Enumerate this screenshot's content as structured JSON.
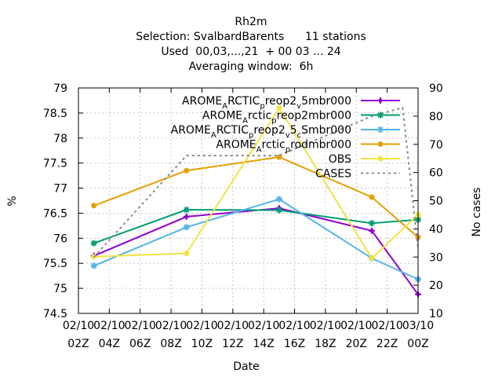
{
  "title_lines": [
    "Rh2m",
    "Selection: SvalbardBarents      11 stations",
    "Used  00,03,...,21  + 00 03 ... 24",
    "Averaging window:  6h"
  ],
  "chart_data": {
    "type": "line",
    "xlabel": "Date",
    "ylabel": "%",
    "y2label": "No cases",
    "x_ticks": [
      [
        "02/10",
        "02Z"
      ],
      [
        "02/10",
        "04Z"
      ],
      [
        "02/10",
        "06Z"
      ],
      [
        "02/10",
        "08Z"
      ],
      [
        "02/10",
        "10Z"
      ],
      [
        "02/10",
        "12Z"
      ],
      [
        "02/10",
        "14Z"
      ],
      [
        "02/10",
        "16Z"
      ],
      [
        "02/10",
        "18Z"
      ],
      [
        "02/10",
        "20Z"
      ],
      [
        "02/10",
        "22Z"
      ],
      [
        "03/10",
        "00Z"
      ]
    ],
    "xlim_hours": [
      2,
      24
    ],
    "ylim": [
      74.5,
      79
    ],
    "y_ticks": [
      "74.5",
      "75",
      "75.5",
      "76",
      "76.5",
      "77",
      "77.5",
      "78",
      "78.5",
      "79"
    ],
    "y2lim": [
      10,
      90
    ],
    "y2_ticks": [
      "10",
      "20",
      "30",
      "40",
      "50",
      "60",
      "70",
      "80",
      "90"
    ],
    "grid": true,
    "legend_position": "top-right",
    "series": [
      {
        "name": "AROME_ARCTIC_preop2_v_5mbr000",
        "legend": [
          "AROME",
          "A",
          "RCTIC",
          "p",
          "reop2",
          "v",
          "5mbr000"
        ],
        "color": "#9400d3",
        "marker": "plus",
        "dash": false,
        "axis": "y",
        "x": [
          3,
          9,
          15,
          21,
          24
        ],
        "y": [
          75.65,
          76.43,
          76.6,
          76.15,
          74.88
        ]
      },
      {
        "name": "AROME_Arctic_preop2mbr000",
        "legend": [
          "AROME",
          "A",
          "rctic",
          "p",
          "reop2mbr000"
        ],
        "color": "#009e73",
        "marker": "star",
        "dash": false,
        "axis": "y",
        "x": [
          3,
          9,
          15,
          21,
          24
        ],
        "y": [
          75.9,
          76.57,
          76.56,
          76.3,
          76.37
        ]
      },
      {
        "name": "AROME_ARCTIC_preop2_v_5_c_Smbr000",
        "legend": [
          "AROME",
          "A",
          "RCTIC",
          "p",
          "reop2",
          "v",
          "5",
          "c",
          "Smbr000"
        ],
        "color": "#56b4e9",
        "marker": "star",
        "dash": false,
        "axis": "y",
        "x": [
          3,
          9,
          15,
          21,
          24
        ],
        "y": [
          75.45,
          76.22,
          76.78,
          75.6,
          75.18
        ]
      },
      {
        "name": "AROME_Arctic_prodmbr000",
        "legend": [
          "AROME",
          "A",
          "rctic",
          "p",
          "rodmbr000"
        ],
        "color": "#e69f00",
        "marker": "dot",
        "dash": false,
        "axis": "y",
        "x": [
          3,
          9,
          15,
          21,
          24
        ],
        "y": [
          76.65,
          77.35,
          77.62,
          76.82,
          76.02
        ]
      },
      {
        "name": "OBS",
        "legend": [
          "OBS"
        ],
        "color": "#f0e442",
        "marker": "dot",
        "dash": false,
        "axis": "y",
        "x": [
          3,
          9,
          15,
          21,
          24
        ],
        "y": [
          75.63,
          75.7,
          78.6,
          75.6,
          76.47
        ]
      },
      {
        "name": "CASES",
        "legend": [
          "CASES"
        ],
        "color": "#888888",
        "marker": "none",
        "dash": true,
        "axis": "y2",
        "x": [
          3,
          9,
          15,
          21,
          23,
          24
        ],
        "y": [
          30,
          66,
          66,
          80,
          83,
          33
        ]
      }
    ]
  }
}
